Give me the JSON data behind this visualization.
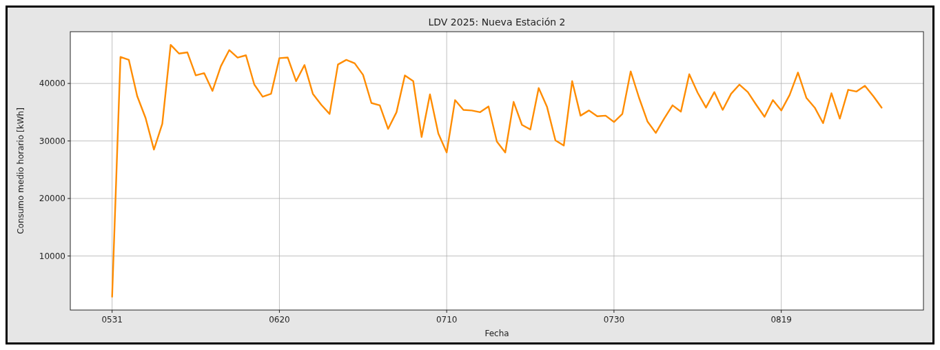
{
  "chart_data": {
    "type": "line",
    "title": "LDV 2025: Nueva Estación 2",
    "xlabel": "Fecha",
    "ylabel": "Consumo medio horario [kWh]",
    "x": [
      "--05-31",
      "--06-01",
      "--06-02",
      "--06-03",
      "--06-04",
      "--06-05",
      "--06-06",
      "--06-07",
      "--06-08",
      "--06-09",
      "--06-10",
      "--06-11",
      "--06-12",
      "--06-13",
      "--06-14",
      "--06-15",
      "--06-16",
      "--06-17",
      "--06-18",
      "--06-19",
      "--06-20",
      "--06-21",
      "--06-22",
      "--06-23",
      "--06-24",
      "--06-25",
      "--06-26",
      "--06-27",
      "--06-28",
      "--06-29",
      "--06-30",
      "--07-01",
      "--07-02",
      "--07-03",
      "--07-04",
      "--07-05",
      "--07-06",
      "--07-07",
      "--07-08",
      "--07-09",
      "--07-10",
      "--07-11",
      "--07-12",
      "--07-13",
      "--07-14",
      "--07-15",
      "--07-16",
      "--07-17",
      "--07-18",
      "--07-19",
      "--07-20",
      "--07-21",
      "--07-22",
      "--07-23",
      "--07-24",
      "--07-25",
      "--07-26",
      "--07-27",
      "--07-28",
      "--07-29",
      "--07-30",
      "--07-31",
      "--08-01",
      "--08-02",
      "--08-03",
      "--08-04",
      "--08-05",
      "--08-06",
      "--08-07",
      "--08-08",
      "--08-09",
      "--08-10",
      "--08-11",
      "--08-12",
      "--08-13",
      "--08-14",
      "--08-15",
      "--08-16",
      "--08-17",
      "--08-18",
      "--08-19",
      "--08-20",
      "--08-21",
      "--08-22",
      "--08-23",
      "--08-24",
      "--08-25",
      "--08-26",
      "--08-27",
      "--08-28",
      "--08-29",
      "--08-30",
      "--08-31"
    ],
    "series": [
      {
        "color": "#ff8c00",
        "values": [
          2900,
          44600,
          44100,
          37800,
          34000,
          28500,
          33000,
          46700,
          45200,
          45400,
          41400,
          41800,
          38700,
          43000,
          45800,
          44500,
          44900,
          39800,
          37700,
          38200,
          44400,
          44500,
          40400,
          43200,
          38200,
          36300,
          34700,
          43300,
          44100,
          43500,
          41500,
          36600,
          36200,
          32100,
          35000,
          41400,
          40400,
          30700,
          38100,
          31300,
          28000,
          37100,
          35400,
          35300,
          35000,
          36000,
          29900,
          28000,
          36800,
          32800,
          32000,
          39200,
          35900,
          30100,
          29200,
          40400,
          34400,
          35300,
          34300,
          34400,
          33300,
          34700,
          42100,
          37500,
          33400,
          31400,
          33900,
          36200,
          35100,
          41600,
          38400,
          35800,
          38500,
          35400,
          38200,
          39800,
          38500,
          36300,
          34200,
          37100,
          35300,
          38000,
          41900,
          37500,
          35800,
          33100,
          38300,
          33900,
          38900,
          38600,
          39600,
          37800,
          35800
        ]
      }
    ],
    "xlim": [
      "--05-26",
      "--09-05"
    ],
    "xticks": [
      {
        "value": "--05-31",
        "label": "0531"
      },
      {
        "value": "--06-20",
        "label": "0620"
      },
      {
        "value": "--07-10",
        "label": "0710"
      },
      {
        "value": "--07-30",
        "label": "0730"
      },
      {
        "value": "--08-19",
        "label": "0819"
      }
    ],
    "ylim": [
      600,
      49000
    ],
    "yticks": [
      10000,
      20000,
      30000,
      40000
    ],
    "grid": true,
    "line_style": "solid"
  }
}
